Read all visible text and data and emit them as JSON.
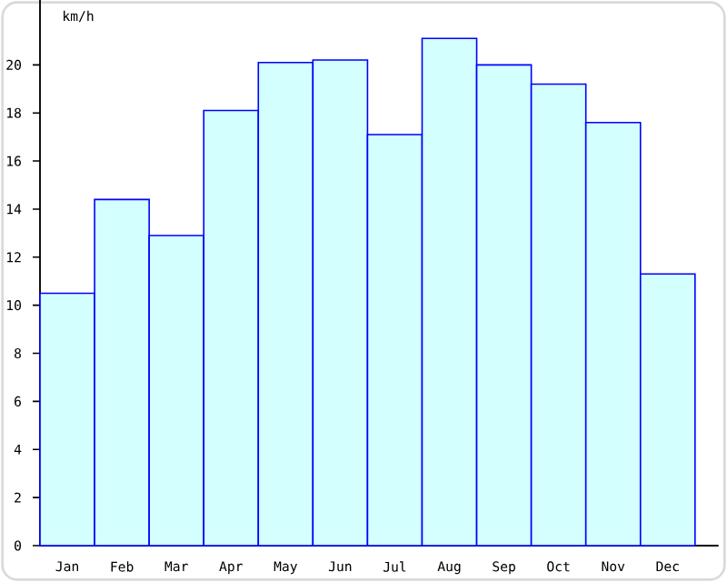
{
  "chart_data": {
    "type": "bar",
    "ylabel": "km/h",
    "categories": [
      "Jan",
      "Feb",
      "Mar",
      "Apr",
      "May",
      "Jun",
      "Jul",
      "Aug",
      "Sep",
      "Oct",
      "Nov",
      "Dec"
    ],
    "values": [
      10.5,
      14.4,
      12.9,
      18.1,
      20.1,
      20.2,
      17.1,
      21.1,
      20.0,
      19.2,
      17.6,
      11.3
    ],
    "color": "#d4ffff",
    "ylim": [
      0,
      22.7
    ],
    "yticks": [
      0,
      2,
      4,
      6,
      8,
      10,
      12,
      14,
      16,
      18,
      20
    ],
    "grid": false
  }
}
